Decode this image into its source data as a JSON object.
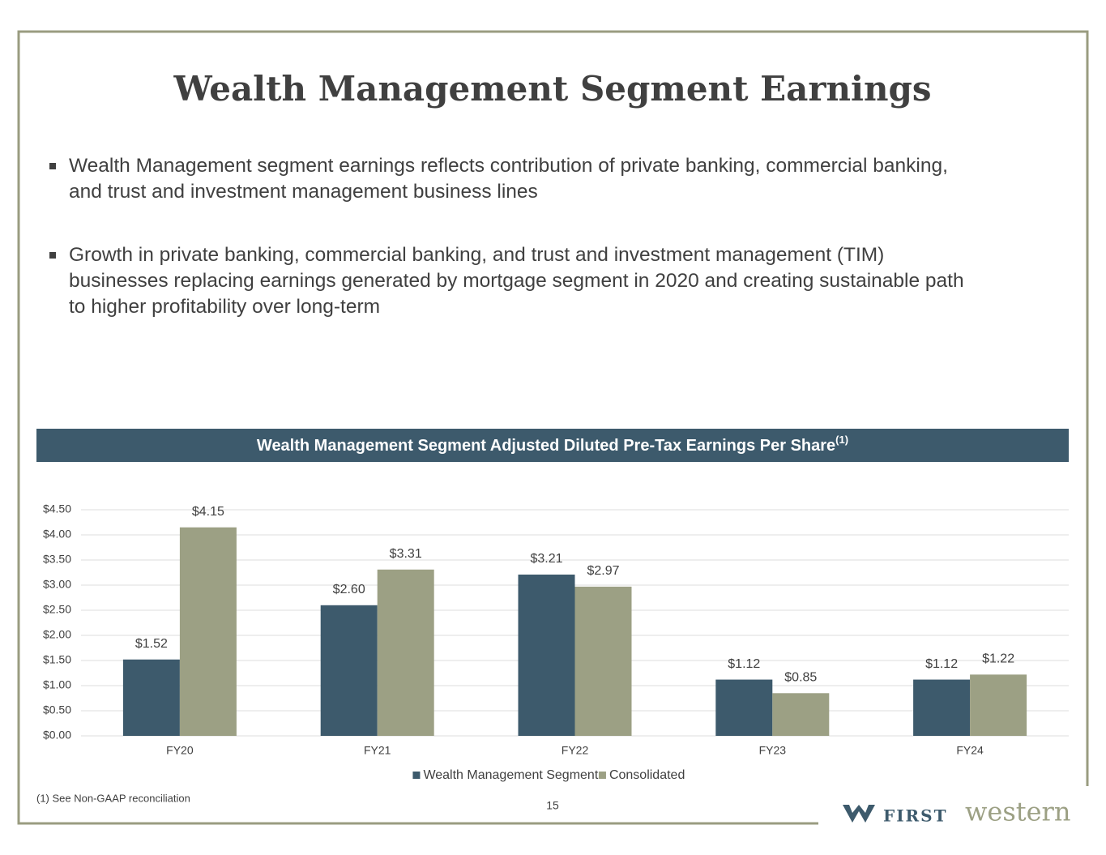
{
  "title": "Wealth Management Segment Earnings",
  "bullets": [
    "Wealth Management segment earnings reflects contribution of private banking, commercial banking, and trust and investment management business lines",
    "Growth in private banking, commercial banking, and trust and investment management (TIM) businesses replacing earnings generated by mortgage segment in 2020 and creating sustainable path to higher profitability over long-term"
  ],
  "chart_data": {
    "type": "bar",
    "title": "Wealth Management Segment Adjusted Diluted Pre-Tax Earnings Per Share",
    "title_note": "(1)",
    "categories": [
      "FY20",
      "FY21",
      "FY22",
      "FY23",
      "FY24"
    ],
    "series": [
      {
        "name": "Wealth Management Segment",
        "color": "#3d5a6c",
        "values": [
          1.52,
          2.6,
          3.21,
          1.12,
          1.12
        ],
        "value_labels": [
          "$1.52",
          "$2.60",
          "$3.21",
          "$1.12",
          "$1.12"
        ]
      },
      {
        "name": "Consolidated",
        "color": "#9ca084",
        "values": [
          4.15,
          3.31,
          2.97,
          0.85,
          1.22
        ],
        "value_labels": [
          "$4.15",
          "$3.31",
          "$2.97",
          "$0.85",
          "$1.22"
        ]
      }
    ],
    "ylim": [
      0,
      4.5
    ],
    "yticks": [
      {
        "value": 0,
        "label": "$0.00"
      },
      {
        "value": 0.5,
        "label": "$0.50"
      },
      {
        "value": 1,
        "label": "$1.00"
      },
      {
        "value": 1.5,
        "label": "$1.50"
      },
      {
        "value": 2,
        "label": "$2.00"
      },
      {
        "value": 2.5,
        "label": "$2.50"
      },
      {
        "value": 3,
        "label": "$3.00"
      },
      {
        "value": 3.5,
        "label": "$3.50"
      },
      {
        "value": 4,
        "label": "$4.00"
      },
      {
        "value": 4.5,
        "label": "$4.50"
      }
    ],
    "grid": true,
    "legend": "bottom"
  },
  "footnote": "(1)  See Non-GAAP reconciliation",
  "page_number": "15",
  "logo": {
    "first": "FIRST",
    "second": "western"
  }
}
